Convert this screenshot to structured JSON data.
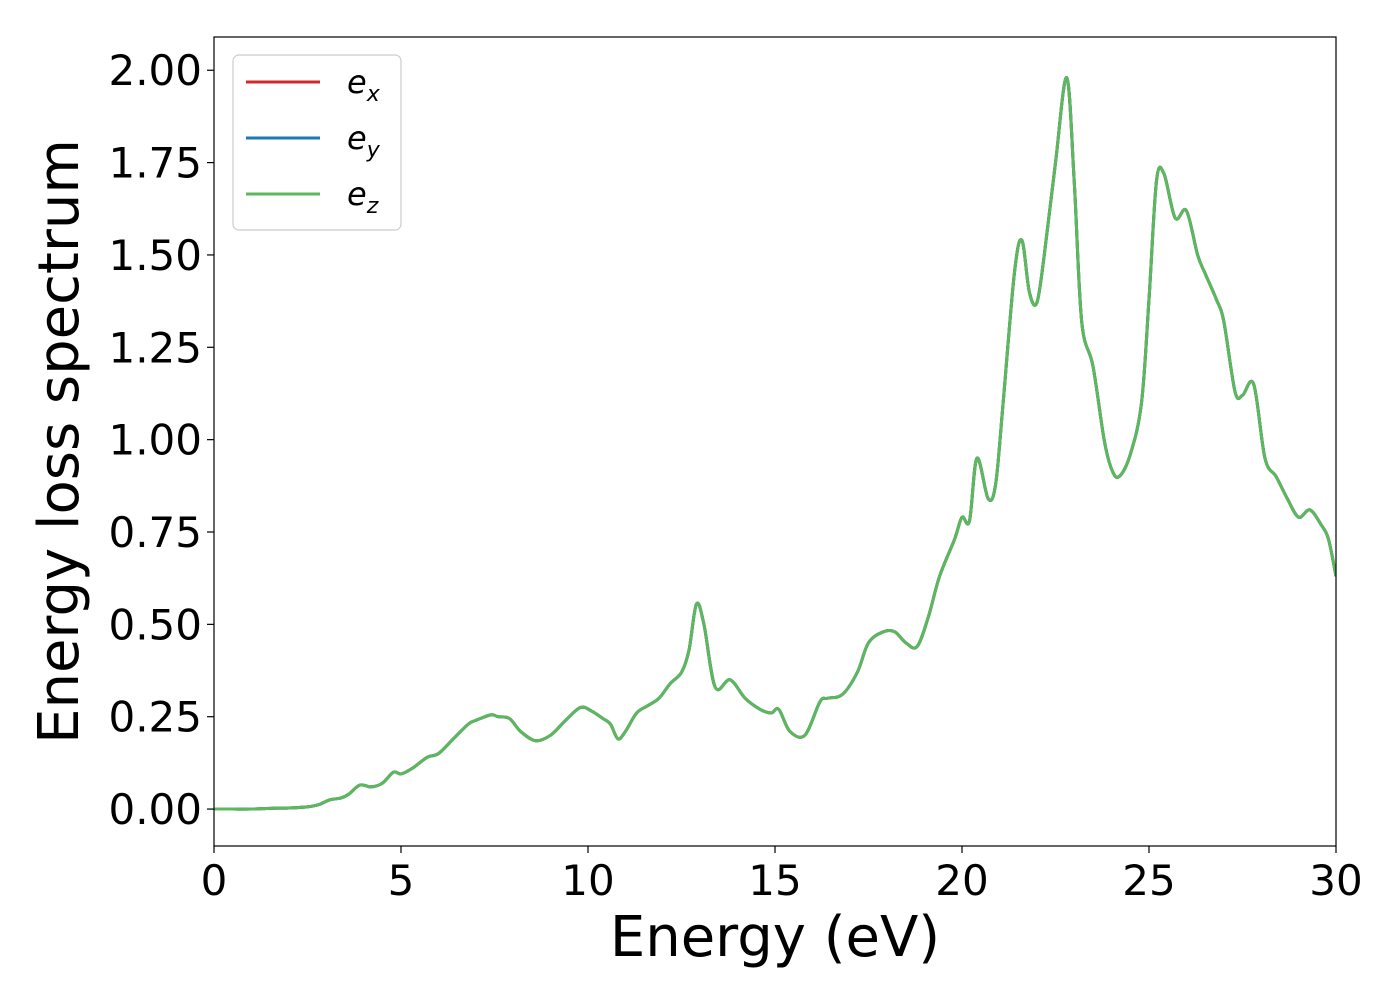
{
  "chart_data": {
    "type": "line",
    "title": "",
    "xlabel": "Energy (eV)",
    "ylabel": "Energy loss spectrum",
    "xlim": [
      0,
      30
    ],
    "ylim": [
      -0.1,
      2.09
    ],
    "xticks": [
      "0",
      "5",
      "10",
      "15",
      "20",
      "25",
      "30"
    ],
    "yticks": [
      "0.00",
      "0.25",
      "0.50",
      "0.75",
      "1.00",
      "1.25",
      "1.50",
      "1.75",
      "2.00"
    ],
    "grid": false,
    "legend_position": "top-left",
    "x": [
      0,
      0.5,
      1,
      1.5,
      2,
      2.5,
      2.8,
      3.1,
      3.4,
      3.6,
      3.9,
      4.2,
      4.5,
      4.8,
      5.0,
      5.3,
      5.7,
      6.0,
      6.4,
      6.8,
      7.0,
      7.4,
      7.6,
      7.9,
      8.2,
      8.6,
      9.0,
      9.4,
      9.8,
      10.1,
      10.4,
      10.6,
      10.8,
      11.0,
      11.3,
      11.6,
      11.9,
      12.2,
      12.5,
      12.7,
      12.9,
      13.1,
      13.4,
      13.8,
      14.2,
      14.6,
      14.9,
      15.1,
      15.4,
      15.8,
      16.2,
      16.4,
      16.8,
      17.2,
      17.5,
      17.9,
      18.2,
      18.5,
      18.8,
      19.1,
      19.4,
      19.8,
      20.0,
      20.2,
      20.4,
      20.7,
      20.9,
      21.1,
      21.4,
      21.6,
      21.8,
      22.0,
      22.2,
      22.5,
      22.8,
      23.0,
      23.2,
      23.5,
      23.8,
      24.0,
      24.2,
      24.5,
      24.8,
      25.0,
      25.2,
      25.4,
      25.7,
      26.0,
      26.3,
      26.5,
      26.8,
      27.0,
      27.3,
      27.5,
      27.8,
      28.1,
      28.4,
      28.7,
      29.0,
      29.3,
      29.6,
      29.8,
      30.0
    ],
    "series": [
      {
        "name": "ex",
        "color": "#d62728",
        "y": [
          0.0,
          0.0,
          0.0,
          0.002,
          0.003,
          0.006,
          0.012,
          0.025,
          0.03,
          0.04,
          0.065,
          0.06,
          0.07,
          0.1,
          0.095,
          0.11,
          0.14,
          0.15,
          0.19,
          0.23,
          0.24,
          0.255,
          0.25,
          0.245,
          0.21,
          0.185,
          0.2,
          0.24,
          0.275,
          0.265,
          0.245,
          0.23,
          0.19,
          0.21,
          0.26,
          0.28,
          0.3,
          0.34,
          0.37,
          0.43,
          0.555,
          0.5,
          0.33,
          0.35,
          0.3,
          0.27,
          0.26,
          0.27,
          0.21,
          0.2,
          0.29,
          0.3,
          0.31,
          0.37,
          0.45,
          0.48,
          0.48,
          0.45,
          0.44,
          0.52,
          0.63,
          0.73,
          0.79,
          0.78,
          0.95,
          0.84,
          0.88,
          1.1,
          1.45,
          1.54,
          1.4,
          1.37,
          1.5,
          1.75,
          1.98,
          1.7,
          1.32,
          1.2,
          1.0,
          0.92,
          0.9,
          0.96,
          1.1,
          1.38,
          1.7,
          1.72,
          1.6,
          1.62,
          1.5,
          1.45,
          1.38,
          1.32,
          1.13,
          1.12,
          1.15,
          0.95,
          0.9,
          0.84,
          0.79,
          0.81,
          0.77,
          0.73,
          0.63
        ]
      },
      {
        "name": "ey",
        "color": "#1f77b4",
        "y": [
          0.0,
          0.0,
          0.0,
          0.002,
          0.003,
          0.006,
          0.012,
          0.025,
          0.03,
          0.04,
          0.065,
          0.06,
          0.07,
          0.1,
          0.095,
          0.11,
          0.14,
          0.15,
          0.19,
          0.23,
          0.24,
          0.255,
          0.25,
          0.245,
          0.21,
          0.185,
          0.2,
          0.24,
          0.275,
          0.265,
          0.245,
          0.23,
          0.19,
          0.21,
          0.26,
          0.28,
          0.3,
          0.34,
          0.37,
          0.43,
          0.555,
          0.5,
          0.33,
          0.35,
          0.3,
          0.27,
          0.26,
          0.27,
          0.21,
          0.2,
          0.29,
          0.3,
          0.31,
          0.37,
          0.45,
          0.48,
          0.48,
          0.45,
          0.44,
          0.52,
          0.63,
          0.73,
          0.79,
          0.78,
          0.95,
          0.84,
          0.88,
          1.1,
          1.45,
          1.54,
          1.4,
          1.37,
          1.5,
          1.75,
          1.98,
          1.7,
          1.32,
          1.2,
          1.0,
          0.92,
          0.9,
          0.96,
          1.1,
          1.38,
          1.7,
          1.72,
          1.6,
          1.62,
          1.5,
          1.45,
          1.38,
          1.32,
          1.13,
          1.12,
          1.15,
          0.95,
          0.9,
          0.84,
          0.79,
          0.81,
          0.77,
          0.73,
          0.63
        ]
      },
      {
        "name": "ez",
        "color": "#5cb85c",
        "y": [
          0.0,
          0.0,
          0.0,
          0.002,
          0.003,
          0.006,
          0.012,
          0.025,
          0.03,
          0.04,
          0.065,
          0.06,
          0.07,
          0.1,
          0.095,
          0.11,
          0.14,
          0.15,
          0.19,
          0.23,
          0.24,
          0.255,
          0.25,
          0.245,
          0.21,
          0.185,
          0.2,
          0.24,
          0.275,
          0.265,
          0.245,
          0.23,
          0.19,
          0.21,
          0.26,
          0.28,
          0.3,
          0.34,
          0.37,
          0.43,
          0.555,
          0.5,
          0.33,
          0.35,
          0.3,
          0.27,
          0.26,
          0.27,
          0.21,
          0.2,
          0.29,
          0.3,
          0.31,
          0.37,
          0.45,
          0.48,
          0.48,
          0.45,
          0.44,
          0.52,
          0.63,
          0.73,
          0.79,
          0.78,
          0.95,
          0.84,
          0.88,
          1.1,
          1.45,
          1.54,
          1.4,
          1.37,
          1.5,
          1.75,
          1.98,
          1.7,
          1.32,
          1.2,
          1.0,
          0.92,
          0.9,
          0.96,
          1.1,
          1.38,
          1.7,
          1.72,
          1.6,
          1.62,
          1.5,
          1.45,
          1.38,
          1.32,
          1.13,
          1.12,
          1.15,
          0.95,
          0.9,
          0.84,
          0.79,
          0.81,
          0.77,
          0.73,
          0.63
        ]
      }
    ],
    "legend": [
      {
        "base": "e",
        "sub": "x",
        "color": "#d62728"
      },
      {
        "base": "e",
        "sub": "y",
        "color": "#1f77b4"
      },
      {
        "base": "e",
        "sub": "z",
        "color": "#5cb85c"
      }
    ]
  }
}
